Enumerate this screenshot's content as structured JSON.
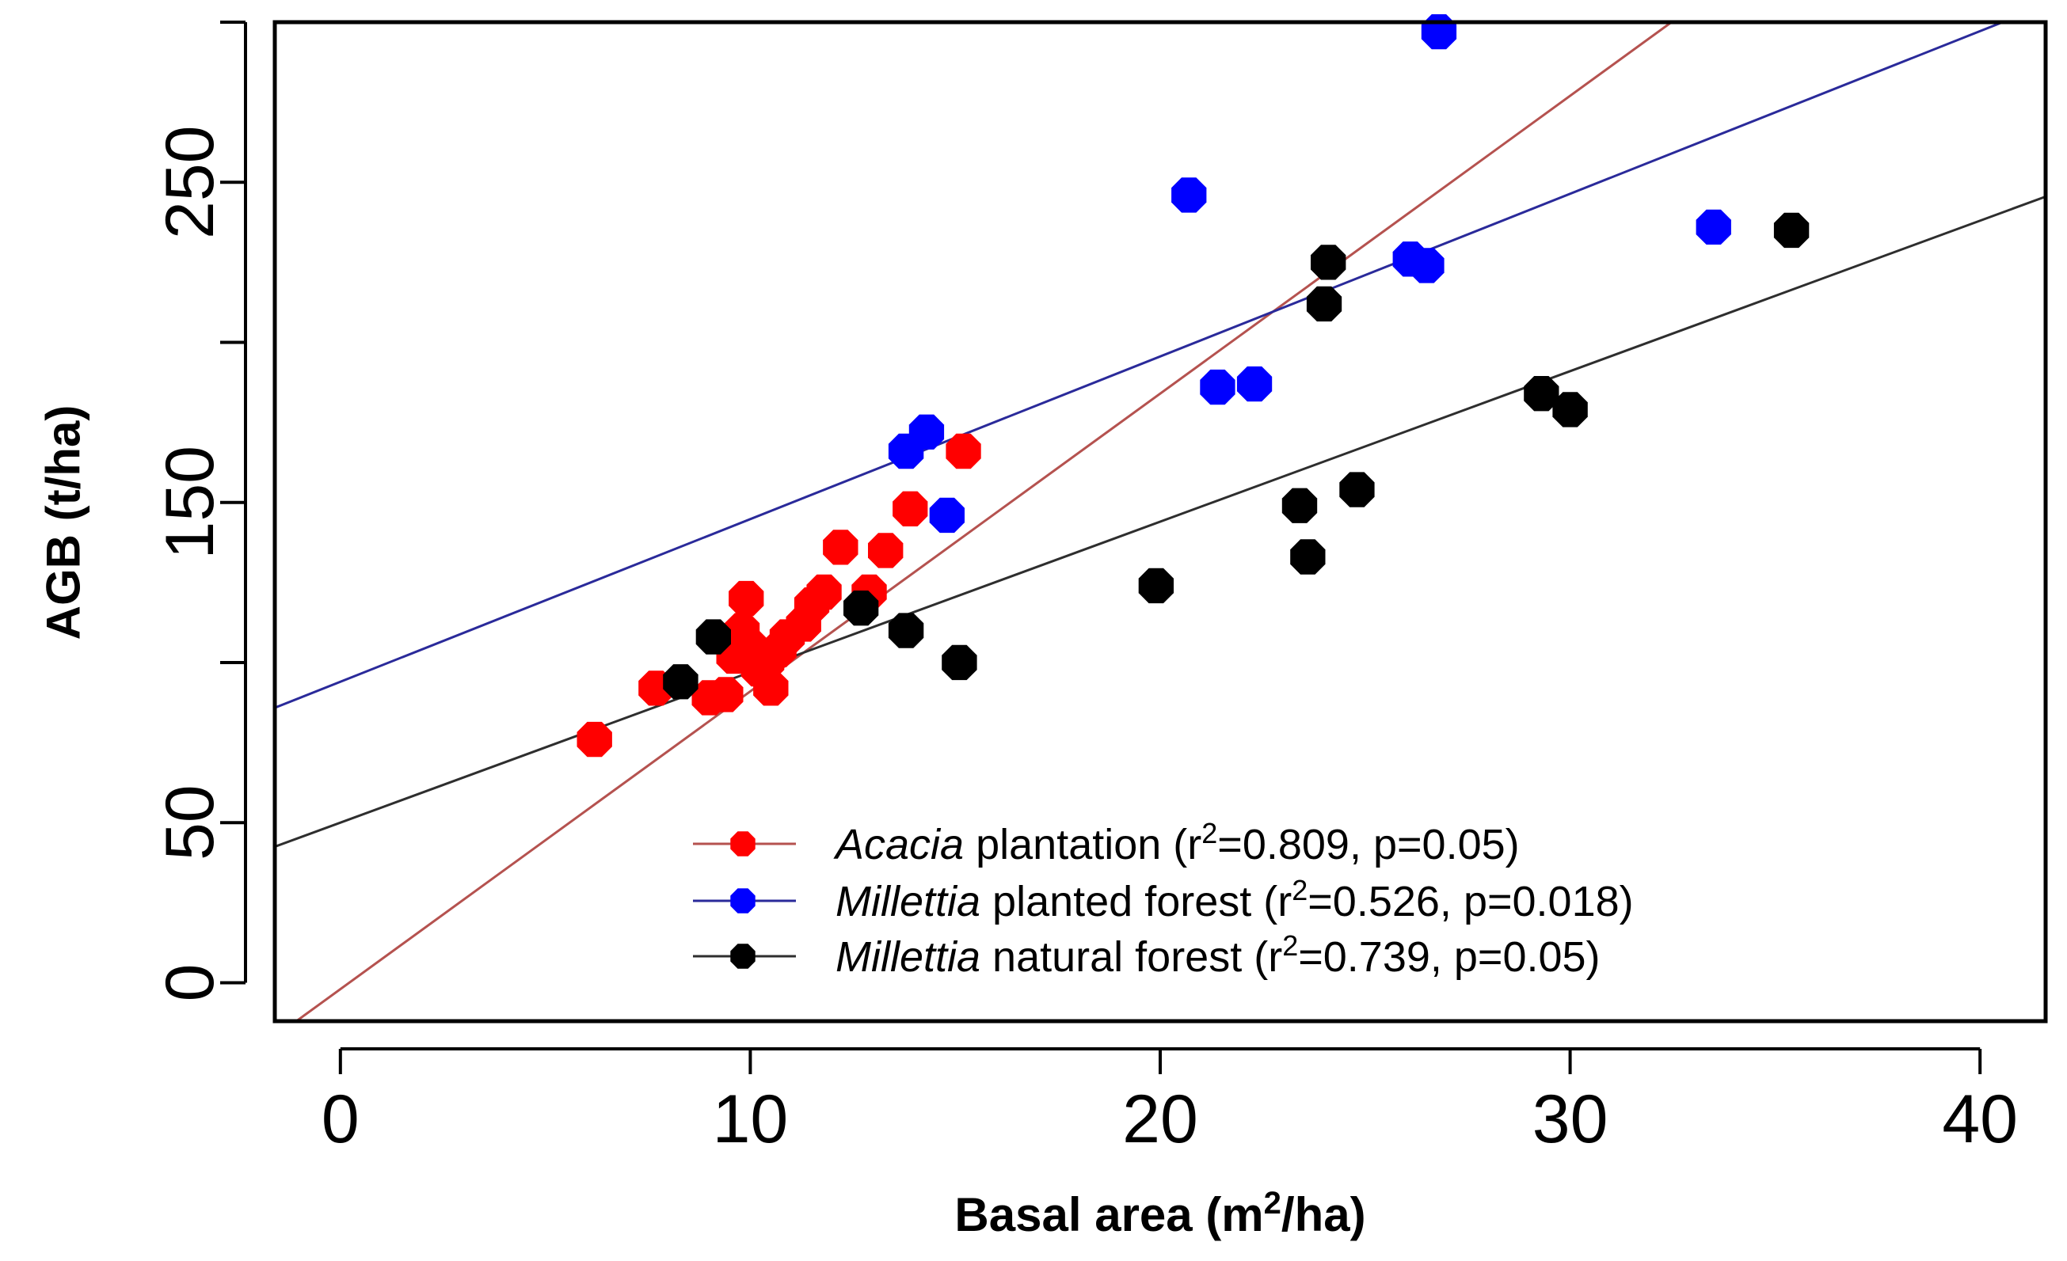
{
  "chart_data": {
    "type": "scatter",
    "xlabel": "Basal area (m²/ha)",
    "xlabel_parts": {
      "prefix": "Basal area (m",
      "sup": "2",
      "suffix": "/ha)"
    },
    "ylabel": "AGB (t/ha)",
    "xlim": [
      -1.6,
      41.6
    ],
    "ylim": [
      -12,
      300
    ],
    "xticks": [
      0,
      10,
      20,
      30,
      40
    ],
    "xtick_labels": [
      "0",
      "10",
      "20",
      "30",
      "40"
    ],
    "yticks": [
      0,
      50,
      100,
      150,
      200,
      250,
      300
    ],
    "ytick_labels": [
      "0",
      "50",
      "",
      "150",
      "",
      "250",
      ""
    ],
    "grid": false,
    "legend_position": "bottom-center",
    "series": [
      {
        "name": "Acacia plantation (r²=0.809, p=0.05)",
        "legend_italic": "Acacia",
        "legend_rest": " plantation (r",
        "legend_sup": "2",
        "legend_tail": "=0.809, p=0.05)",
        "color": "#ff0000",
        "line_color": "#b5524f",
        "fit": {
          "intercept": -2,
          "slope": 9.3
        },
        "points": [
          {
            "x": 6.2,
            "y": 76
          },
          {
            "x": 7.7,
            "y": 92
          },
          {
            "x": 9.0,
            "y": 89
          },
          {
            "x": 9.4,
            "y": 90
          },
          {
            "x": 9.6,
            "y": 102
          },
          {
            "x": 9.8,
            "y": 110
          },
          {
            "x": 9.9,
            "y": 120
          },
          {
            "x": 10.0,
            "y": 105
          },
          {
            "x": 10.2,
            "y": 98
          },
          {
            "x": 10.4,
            "y": 100
          },
          {
            "x": 10.5,
            "y": 92
          },
          {
            "x": 10.7,
            "y": 104
          },
          {
            "x": 10.9,
            "y": 108
          },
          {
            "x": 11.3,
            "y": 112
          },
          {
            "x": 11.5,
            "y": 118
          },
          {
            "x": 11.8,
            "y": 122
          },
          {
            "x": 12.2,
            "y": 136
          },
          {
            "x": 12.9,
            "y": 122
          },
          {
            "x": 13.3,
            "y": 135
          },
          {
            "x": 13.9,
            "y": 148
          },
          {
            "x": 15.2,
            "y": 166
          }
        ]
      },
      {
        "name": "Millettia planted forest (r²=0.526, p=0.018)",
        "legend_italic": "Millettia",
        "legend_rest": " planted forest (r",
        "legend_sup": "2",
        "legend_tail": "=0.526,  p=0.018)",
        "color": "#0000ff",
        "line_color": "#2a2a9a",
        "fit": {
          "intercept": 94,
          "slope": 5.08
        },
        "points": [
          {
            "x": 13.8,
            "y": 166
          },
          {
            "x": 14.3,
            "y": 172
          },
          {
            "x": 14.8,
            "y": 146
          },
          {
            "x": 20.7,
            "y": 246
          },
          {
            "x": 21.4,
            "y": 186
          },
          {
            "x": 22.3,
            "y": 187
          },
          {
            "x": 26.1,
            "y": 226
          },
          {
            "x": 26.5,
            "y": 224
          },
          {
            "x": 26.8,
            "y": 297
          },
          {
            "x": 33.5,
            "y": 236
          }
        ]
      },
      {
        "name": "Millettia natural forest (r²=0.739, p=0.05)",
        "legend_italic": "Millettia",
        "legend_rest": " natural forest (r",
        "legend_sup": "2",
        "legend_tail": "=0.739,  p=0.05)",
        "color": "#000000",
        "line_color": "#2e2e2e",
        "fit": {
          "intercept": 50,
          "slope": 4.7
        },
        "points": [
          {
            "x": 8.3,
            "y": 94
          },
          {
            "x": 9.1,
            "y": 108
          },
          {
            "x": 12.7,
            "y": 117
          },
          {
            "x": 13.8,
            "y": 110
          },
          {
            "x": 15.1,
            "y": 100
          },
          {
            "x": 19.9,
            "y": 124
          },
          {
            "x": 23.4,
            "y": 149
          },
          {
            "x": 23.6,
            "y": 133
          },
          {
            "x": 24.0,
            "y": 212
          },
          {
            "x": 24.1,
            "y": 225
          },
          {
            "x": 24.8,
            "y": 154
          },
          {
            "x": 29.3,
            "y": 184
          },
          {
            "x": 30.0,
            "y": 179
          },
          {
            "x": 35.4,
            "y": 235
          }
        ]
      }
    ]
  }
}
